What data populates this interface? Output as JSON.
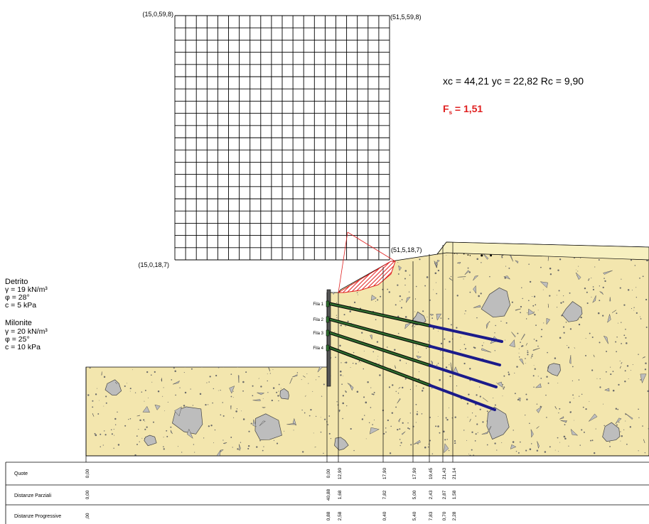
{
  "grid": {
    "corner_top_left": "(15,0,59,8)",
    "corner_top_right": "(51,5,59,8)",
    "corner_bottom_left": "(15,0,18,7)",
    "corner_bottom_right": "(51,5,18,7)",
    "columns": 20,
    "rows": 20
  },
  "results": {
    "circle_line": "xc = 44,21 yc = 22,82 Rc = 9,90",
    "fs_prefix": "F",
    "fs_sub": "s",
    "fs_value": " = 1,51"
  },
  "soils": [
    {
      "name": "Detrito",
      "gamma": "γ = 19  kN/m³",
      "phi": "φ = 28°",
      "c": "c = 5 kPa"
    },
    {
      "name": "Milonite",
      "gamma": "γ = 20  kN/m³",
      "phi": "φ = 25°",
      "c": "c = 10 kPa"
    }
  ],
  "anchors": [
    "Fila 1",
    "Fila 2",
    "Fila 3",
    "Fila 4"
  ],
  "table": {
    "rows": [
      {
        "label": "Quote",
        "values": [
          "0,00",
          "0,00",
          "12,90",
          "17,90",
          "17,90",
          "19,45",
          "21,43",
          "21,14"
        ]
      },
      {
        "label": "Distanze Parziali",
        "values": [
          "0,00",
          "40,88",
          "1,68",
          "7,82",
          "5,00",
          "2,43",
          "2,87",
          "1,58"
        ]
      },
      {
        "label": "Distanze Progressive",
        "values": [
          ",00",
          "0,88",
          "2,58",
          "0,40",
          "5,40",
          "7,83",
          "0,70",
          "2,28"
        ]
      }
    ]
  },
  "colors": {
    "soil": "#f3e6ae",
    "stone": "#bdbdbd",
    "top_soil": "#f7f0c0",
    "anchor_free": "#2f6b2f",
    "anchor_bond": "#1b1b8a",
    "slip": "#e02020"
  }
}
